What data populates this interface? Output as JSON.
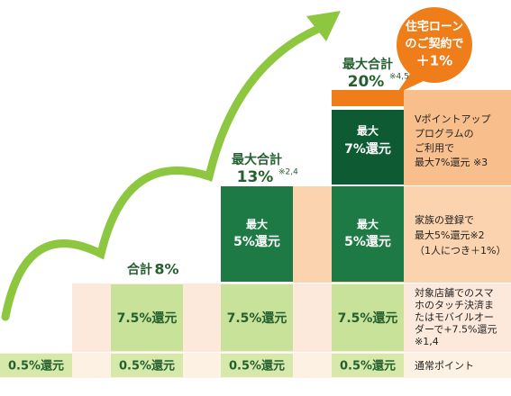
{
  "steps": [
    {
      "base": "0.5%還元"
    },
    {
      "base": "0.5%還元",
      "touch": "7.5%還元",
      "heading": "合計",
      "total": "8%"
    },
    {
      "base": "0.5%還元",
      "touch": "7.5%還元",
      "family_top": "最大",
      "family": "5%還元",
      "heading": "最大合計",
      "total": "13%",
      "note": "※2,4"
    },
    {
      "base": "0.5%還元",
      "touch": "7.5%還元",
      "family_top": "最大",
      "family": "5%還元",
      "vpoint_top": "最大",
      "vpoint": "7%還元",
      "heading": "最大合計",
      "total": "20%",
      "note": "※4,5"
    }
  ],
  "descriptions": {
    "vpoint": [
      "Vポイントアップ",
      "プログラムの",
      "ご利用で",
      "最大7%還元 ※3"
    ],
    "family": [
      "家族の登録で",
      "最大5%還元※2",
      "（1人につき＋1%）"
    ],
    "touch": [
      "対象店舗でのスマ",
      "ホのタッチ決済ま",
      "たはモバイルオー",
      "ダーで+7.5%還元",
      "※1,4"
    ],
    "base": "通常ポイント"
  },
  "bubble": [
    "住宅ローン",
    "のご契約で",
    "＋1%"
  ]
}
